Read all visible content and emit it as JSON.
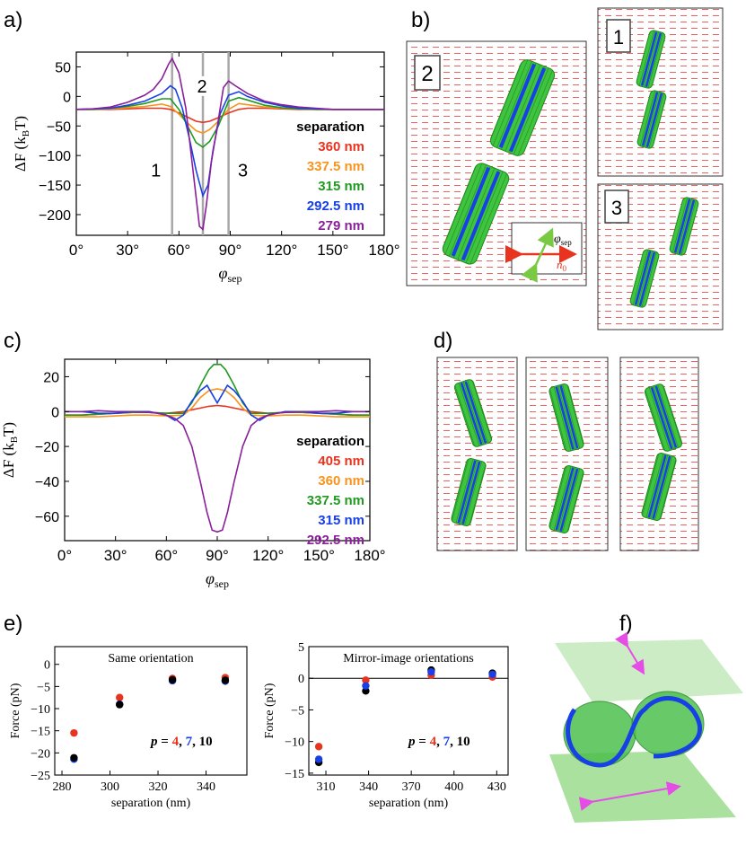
{
  "panel_labels": {
    "a": "a)",
    "b": "b)",
    "c": "c)",
    "d": "d)",
    "e": "e)",
    "f": "f)"
  },
  "colors": {
    "red": "#e8331f",
    "orange": "#f7941d",
    "green": "#1f9a1f",
    "blue": "#1740e6",
    "purple": "#8a1f9a",
    "black": "#000000",
    "gray": "#a8a8a8",
    "magenta": "#e64de6",
    "rod_green": "#35c035",
    "director_red": "#e85050"
  },
  "chart_data": [
    {
      "id": "a",
      "type": "line",
      "xlabel": "φ",
      "xlabel_sub": "sep",
      "ylabel": "ΔF (k",
      "ylabel_sub": "B",
      "ylabel_end": "T)",
      "xlim": [
        0,
        180
      ],
      "ylim": [
        -235,
        75
      ],
      "xticks": [
        0,
        30,
        60,
        90,
        120,
        150,
        180
      ],
      "xtick_labels": [
        "0°",
        "30°",
        "60°",
        "90°",
        "120°",
        "150°",
        "180°"
      ],
      "yticks": [
        50,
        0,
        -50,
        -100,
        -150,
        -200
      ],
      "ytick_labels": [
        "50",
        "0",
        "−50",
        "−100",
        "−150",
        "−200"
      ],
      "vlines": [
        {
          "x": 56,
          "label": "1"
        },
        {
          "x": 74,
          "label": "2"
        },
        {
          "x": 89,
          "label": "3"
        }
      ],
      "legend_title": "separation",
      "legend_position": "right",
      "series": [
        {
          "name": "360 nm",
          "color": "red",
          "x": [
            0,
            10,
            20,
            30,
            40,
            50,
            55,
            60,
            65,
            70,
            74,
            78,
            83,
            89,
            95,
            100,
            110,
            120,
            130,
            140,
            150,
            160,
            170,
            180
          ],
          "y": [
            -22,
            -22,
            -22,
            -21,
            -20,
            -20,
            -22,
            -28,
            -35,
            -42,
            -44,
            -42,
            -36,
            -28,
            -22,
            -20,
            -20,
            -21,
            -22,
            -22,
            -22,
            -22,
            -22,
            -22
          ]
        },
        {
          "name": "337.5 nm",
          "color": "orange",
          "x": [
            0,
            10,
            20,
            30,
            40,
            50,
            55,
            60,
            65,
            70,
            74,
            78,
            83,
            89,
            95,
            100,
            110,
            120,
            130,
            140,
            150,
            160,
            170,
            180
          ],
          "y": [
            -22,
            -22,
            -21,
            -19,
            -17,
            -13,
            -17,
            -30,
            -45,
            -58,
            -62,
            -56,
            -42,
            -22,
            -12,
            -14,
            -18,
            -20,
            -21,
            -22,
            -22,
            -22,
            -22,
            -22
          ]
        },
        {
          "name": "315 nm",
          "color": "green",
          "x": [
            0,
            10,
            20,
            30,
            40,
            50,
            55,
            60,
            65,
            70,
            74,
            78,
            83,
            89,
            95,
            100,
            110,
            120,
            130,
            140,
            150,
            160,
            170,
            180
          ],
          "y": [
            -22,
            -22,
            -20,
            -17,
            -12,
            -4,
            -4,
            -22,
            -50,
            -78,
            -86,
            -76,
            -50,
            -8,
            -2,
            -6,
            -15,
            -19,
            -21,
            -22,
            -22,
            -22,
            -22,
            -22
          ]
        },
        {
          "name": "292.5 nm",
          "color": "blue",
          "x": [
            0,
            10,
            20,
            30,
            40,
            50,
            55,
            58,
            62,
            66,
            70,
            74,
            77,
            80,
            84,
            89,
            95,
            100,
            110,
            120,
            130,
            140,
            150,
            160,
            170,
            180
          ],
          "y": [
            -22,
            -21,
            -20,
            -15,
            -8,
            5,
            18,
            12,
            -20,
            -70,
            -125,
            -168,
            -150,
            -90,
            -30,
            2,
            8,
            0,
            -10,
            -16,
            -20,
            -21,
            -22,
            -22,
            -22,
            -22
          ]
        },
        {
          "name": "279 nm",
          "color": "purple",
          "x": [
            0,
            10,
            20,
            30,
            40,
            45,
            50,
            54,
            56,
            60,
            64,
            68,
            72,
            74,
            76,
            79,
            83,
            86,
            89,
            93,
            100,
            110,
            120,
            130,
            140,
            150,
            160,
            170,
            180
          ],
          "y": [
            -22,
            -21,
            -18,
            -10,
            2,
            12,
            30,
            55,
            64,
            40,
            -20,
            -120,
            -220,
            -225,
            -185,
            -110,
            -40,
            15,
            26,
            18,
            5,
            -8,
            -14,
            -18,
            -20,
            -22,
            -22,
            -22,
            -22
          ]
        }
      ]
    },
    {
      "id": "c",
      "type": "line",
      "xlabel": "φ",
      "xlabel_sub": "sep",
      "ylabel": "ΔF (k",
      "ylabel_sub": "B",
      "ylabel_end": "T)",
      "xlim": [
        0,
        180
      ],
      "ylim": [
        -74,
        30
      ],
      "xticks": [
        0,
        30,
        60,
        90,
        120,
        150,
        180
      ],
      "xtick_labels": [
        "0°",
        "30°",
        "60°",
        "90°",
        "120°",
        "150°",
        "180°"
      ],
      "yticks": [
        20,
        0,
        -20,
        -40,
        -60
      ],
      "ytick_labels": [
        "20",
        "0",
        "−20",
        "−40",
        "−60"
      ],
      "legend_title": "separation",
      "legend_position": "right",
      "series": [
        {
          "name": "405 nm",
          "color": "red",
          "x": [
            0,
            10,
            20,
            30,
            40,
            50,
            60,
            70,
            80,
            85,
            90,
            95,
            100,
            110,
            120,
            130,
            140,
            150,
            160,
            170,
            180
          ],
          "y": [
            -2,
            -2,
            -1.5,
            -1,
            -0.5,
            -0.5,
            -1,
            0,
            2,
            3,
            3.5,
            3,
            2,
            0,
            -1,
            -0.5,
            -0.5,
            -1,
            -1.5,
            -2,
            -2
          ]
        },
        {
          "name": "360 nm",
          "color": "orange",
          "x": [
            0,
            10,
            20,
            30,
            40,
            50,
            60,
            70,
            75,
            80,
            85,
            90,
            95,
            100,
            105,
            110,
            120,
            130,
            140,
            150,
            160,
            170,
            180
          ],
          "y": [
            -3,
            -3,
            -3,
            -2.5,
            -2,
            -2,
            -2.5,
            -2,
            2,
            8,
            12,
            13,
            12,
            8,
            2,
            -2,
            -2.5,
            -2,
            -2,
            -2.5,
            -3,
            -3,
            -3
          ]
        },
        {
          "name": "337.5 nm",
          "color": "green",
          "x": [
            0,
            10,
            20,
            30,
            40,
            50,
            60,
            70,
            75,
            80,
            85,
            88,
            92,
            95,
            100,
            105,
            110,
            120,
            130,
            140,
            150,
            160,
            170,
            180
          ],
          "y": [
            -2,
            -2,
            -1.5,
            -1,
            -0.5,
            -0.5,
            -1,
            -1,
            5,
            15,
            24,
            27,
            27,
            24,
            15,
            5,
            -1,
            -1,
            -0.5,
            -0.5,
            -1,
            -1.5,
            -2,
            -2
          ]
        },
        {
          "name": "315 nm",
          "color": "blue",
          "x": [
            0,
            10,
            20,
            30,
            40,
            50,
            60,
            65,
            70,
            75,
            80,
            84,
            87,
            90,
            93,
            96,
            100,
            105,
            110,
            115,
            120,
            130,
            140,
            150,
            160,
            170,
            180
          ],
          "y": [
            0,
            0,
            -1,
            -1,
            0,
            0,
            -2,
            -5,
            -2,
            6,
            12,
            15,
            10,
            5,
            10,
            15,
            12,
            6,
            -2,
            -5,
            -2,
            0,
            0,
            -1,
            -1,
            0,
            0
          ]
        },
        {
          "name": "292.5 nm",
          "color": "purple",
          "x": [
            0,
            10,
            20,
            30,
            40,
            50,
            55,
            60,
            65,
            70,
            75,
            80,
            84,
            87,
            90,
            93,
            96,
            100,
            105,
            110,
            115,
            120,
            125,
            130,
            140,
            150,
            160,
            170,
            180
          ],
          "y": [
            0,
            0,
            0.5,
            0,
            0,
            -0.5,
            -1,
            -2,
            -4,
            -8,
            -20,
            -40,
            -58,
            -68,
            -69,
            -68,
            -58,
            -40,
            -20,
            -8,
            -4,
            -2,
            -1,
            -0.5,
            0,
            0,
            0.5,
            0,
            0
          ]
        }
      ]
    },
    {
      "id": "e1",
      "type": "scatter",
      "title": "Same orientation",
      "xlabel": "separation (nm)",
      "ylabel": "Force (pN)",
      "xlim": [
        277,
        357
      ],
      "ylim": [
        -25,
        4
      ],
      "xticks": [
        280,
        300,
        320,
        340
      ],
      "yticks": [
        0,
        -5,
        -10,
        -15,
        -20,
        -25
      ],
      "ytick_labels": [
        "0",
        "−5",
        "−10",
        "−15",
        "−20",
        "−25"
      ],
      "series": [
        {
          "name": "p = 4",
          "color": "red",
          "x": [
            285,
            304,
            326,
            348
          ],
          "y": [
            -15.5,
            -7.5,
            -3.2,
            -3.0
          ]
        },
        {
          "name": "p = 7",
          "color": "blue",
          "x": [
            285,
            304,
            326,
            348
          ],
          "y": [
            -21.4,
            -9.0,
            -3.7,
            -3.8
          ]
        },
        {
          "name": "p = 10",
          "color": "black",
          "x": [
            285,
            304,
            326,
            348
          ],
          "y": [
            -21.1,
            -9.1,
            -3.5,
            -3.6
          ]
        }
      ],
      "legend": {
        "prefix": "p",
        "eq": " = ",
        "items": [
          {
            "text": "4",
            "color": "red",
            "sep": ", "
          },
          {
            "text": "7",
            "color": "blue",
            "sep": ", "
          },
          {
            "text": "10",
            "color": "black",
            "sep": ""
          }
        ]
      }
    },
    {
      "id": "e2",
      "type": "scatter",
      "title": "Mirror-image orientations",
      "xlabel": "separation (nm)",
      "ylabel": "Force (pN)",
      "xlim": [
        298,
        438
      ],
      "ylim": [
        -15.3,
        5
      ],
      "xticks": [
        310,
        340,
        370,
        400,
        430
      ],
      "yticks": [
        5,
        0,
        -5,
        -10,
        -15
      ],
      "ytick_labels": [
        "5",
        "0",
        "−5",
        "−10",
        "−15"
      ],
      "hline": 0,
      "series": [
        {
          "name": "p = 4",
          "color": "red",
          "x": [
            305,
            338,
            384,
            427
          ],
          "y": [
            -10.8,
            -0.3,
            0.5,
            0.2
          ]
        },
        {
          "name": "p = 10",
          "color": "black",
          "x": [
            305,
            338,
            384,
            427
          ],
          "y": [
            -13.3,
            -2.0,
            1.3,
            0.8
          ]
        },
        {
          "name": "p = 7",
          "color": "blue",
          "x": [
            305,
            338,
            384,
            427
          ],
          "y": [
            -12.8,
            -1.2,
            1.0,
            0.6
          ]
        }
      ],
      "legend": {
        "prefix": "p",
        "eq": " = ",
        "items": [
          {
            "text": "4",
            "color": "red",
            "sep": ", "
          },
          {
            "text": "7",
            "color": "blue",
            "sep": ", "
          },
          {
            "text": "10",
            "color": "black",
            "sep": ""
          }
        ]
      }
    }
  ],
  "panel_b": {
    "box_labels": [
      "2",
      "1",
      "3"
    ],
    "inset": {
      "phi": "φ",
      "phi_sub": "sep",
      "n": "n",
      "n_sub": "0"
    }
  }
}
